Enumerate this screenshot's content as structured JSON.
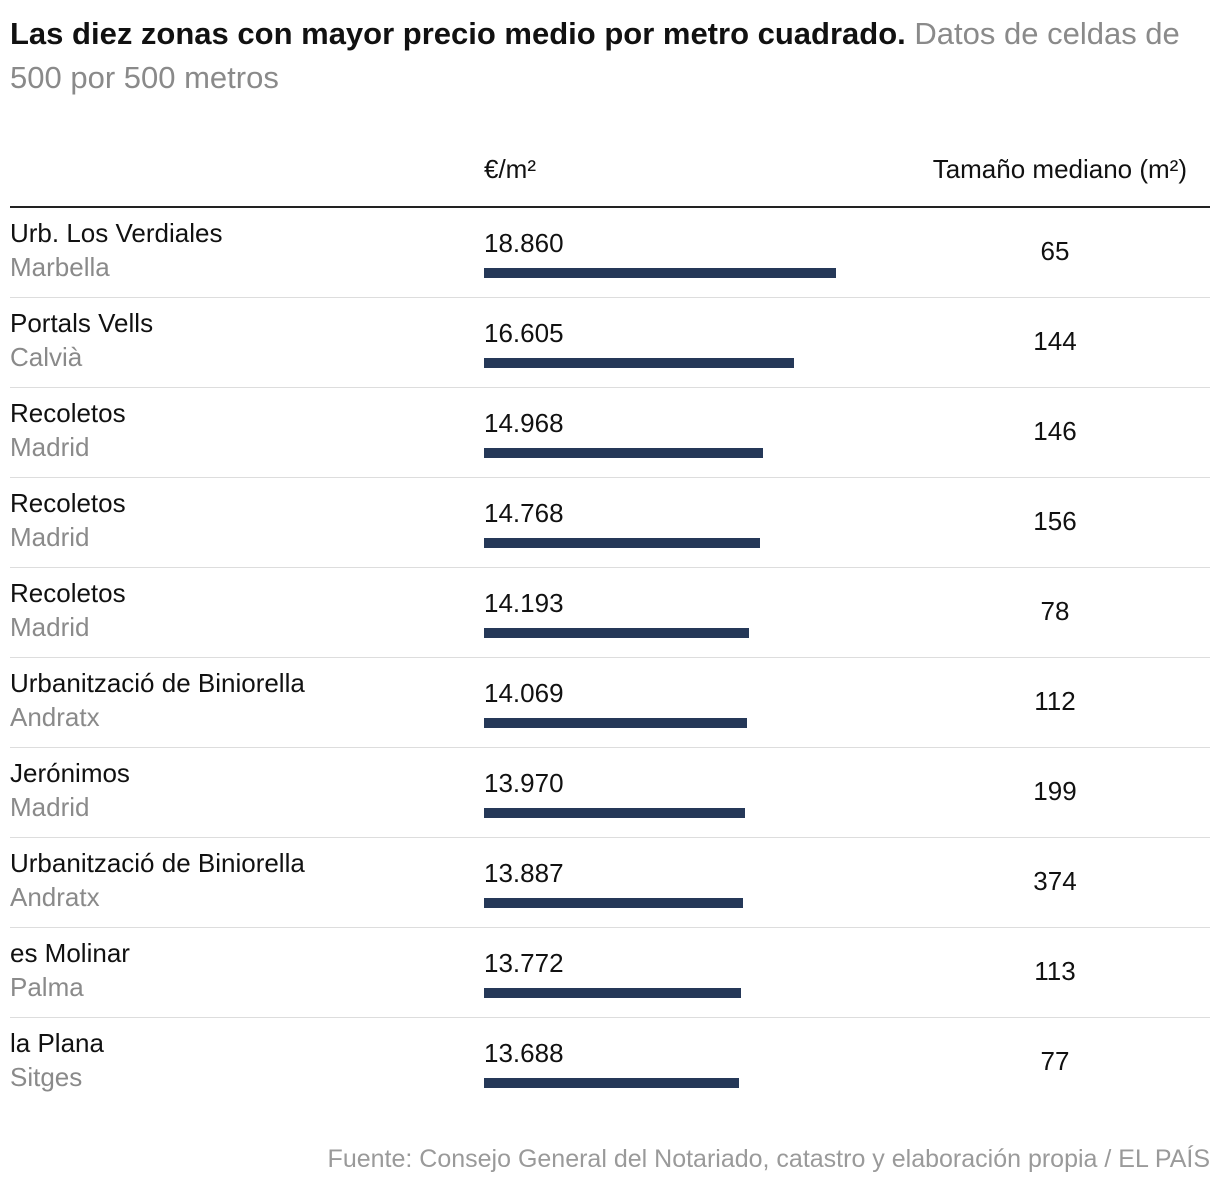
{
  "header": {
    "title_bold": "Las diez zonas con mayor precio medio por metro cuadrado",
    "title_dot": ".",
    "title_sub": " Datos de celdas de 500 por 500 metros"
  },
  "columns": {
    "price": "€/m²",
    "size": "Tamaño mediano (m²)"
  },
  "source": "Fuente: Consejo General del Notariado, catastro y elaboración propia / EL PAÍS",
  "colors": {
    "bar": "#253858",
    "muted": "#8a8a8a"
  },
  "chart_data": {
    "type": "bar",
    "orientation": "horizontal",
    "x_max": 18860,
    "rows": [
      {
        "zone": "Urb. Los Verdiales",
        "city": "Marbella",
        "price_label": "18.860",
        "price": 18860,
        "size": "65"
      },
      {
        "zone": "Portals Vells",
        "city": "Calvià",
        "price_label": "16.605",
        "price": 16605,
        "size": "144"
      },
      {
        "zone": "Recoletos",
        "city": "Madrid",
        "price_label": "14.968",
        "price": 14968,
        "size": "146"
      },
      {
        "zone": "Recoletos",
        "city": "Madrid",
        "price_label": "14.768",
        "price": 14768,
        "size": "156"
      },
      {
        "zone": "Recoletos",
        "city": "Madrid",
        "price_label": "14.193",
        "price": 14193,
        "size": "78"
      },
      {
        "zone": "Urbanització de Biniorella",
        "city": "Andratx",
        "price_label": "14.069",
        "price": 14069,
        "size": "112"
      },
      {
        "zone": "Jerónimos",
        "city": "Madrid",
        "price_label": "13.970",
        "price": 13970,
        "size": "199"
      },
      {
        "zone": "Urbanització de Biniorella",
        "city": "Andratx",
        "price_label": "13.887",
        "price": 13887,
        "size": "374"
      },
      {
        "zone": "es Molinar",
        "city": "Palma",
        "price_label": "13.772",
        "price": 13772,
        "size": "113"
      },
      {
        "zone": "la Plana",
        "city": "Sitges",
        "price_label": "13.688",
        "price": 13688,
        "size": "77"
      }
    ]
  }
}
